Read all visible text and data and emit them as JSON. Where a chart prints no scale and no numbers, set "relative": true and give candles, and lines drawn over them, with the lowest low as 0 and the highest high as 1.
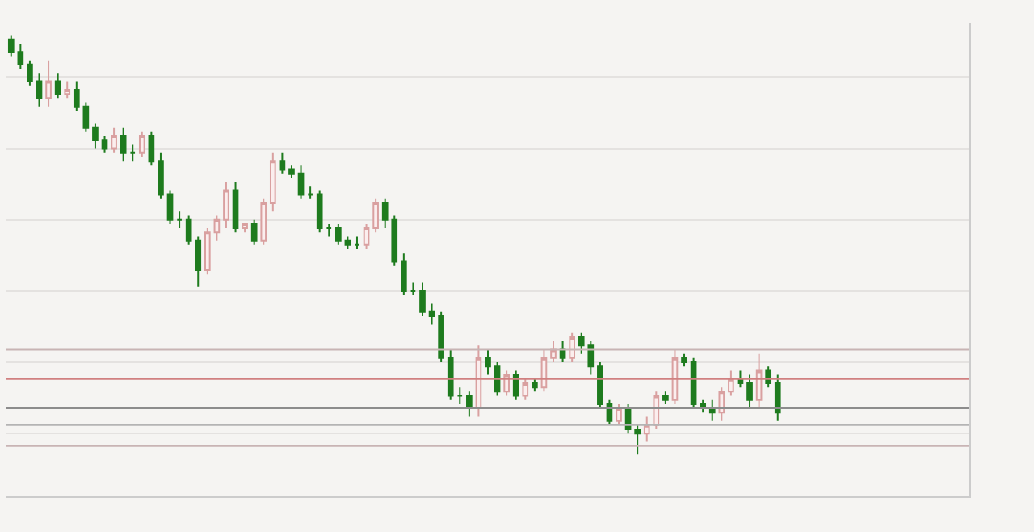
{
  "chart_data": {
    "type": "candlestick",
    "relative": true,
    "grid": true,
    "categories": [
      null,
      null,
      null,
      null,
      null,
      null,
      null,
      null,
      null,
      null,
      null,
      null,
      null,
      null,
      null,
      null,
      null,
      null,
      null,
      null,
      null,
      null,
      null,
      null,
      null,
      null,
      null,
      null,
      null,
      null,
      null,
      null,
      null,
      null,
      null,
      null,
      null,
      null,
      null,
      null,
      null,
      null,
      null,
      null,
      null,
      null,
      null,
      null,
      null,
      null,
      null,
      null,
      null,
      null,
      null,
      null,
      null,
      null,
      null,
      null,
      null,
      null,
      null,
      null,
      null,
      null,
      null,
      null,
      null,
      null,
      null,
      null,
      null,
      null,
      null,
      null,
      null,
      null,
      null,
      null,
      null,
      null,
      null
    ],
    "ohlc": [
      [
        0.99,
        1.0,
        0.95,
        0.96
      ],
      [
        0.96,
        0.98,
        0.92,
        0.93
      ],
      [
        0.93,
        0.94,
        0.88,
        0.89
      ],
      [
        0.89,
        0.91,
        0.83,
        0.85
      ],
      [
        0.85,
        0.94,
        0.83,
        0.89
      ],
      [
        0.89,
        0.91,
        0.85,
        0.86
      ],
      [
        0.86,
        0.89,
        0.85,
        0.87
      ],
      [
        0.87,
        0.89,
        0.82,
        0.83
      ],
      [
        0.83,
        0.84,
        0.77,
        0.78
      ],
      [
        0.78,
        0.79,
        0.73,
        0.75
      ],
      [
        0.75,
        0.76,
        0.72,
        0.73
      ],
      [
        0.73,
        0.78,
        0.72,
        0.76
      ],
      [
        0.76,
        0.78,
        0.7,
        0.72
      ],
      [
        0.72,
        0.74,
        0.7,
        0.72
      ],
      [
        0.72,
        0.77,
        0.71,
        0.76
      ],
      [
        0.76,
        0.77,
        0.69,
        0.7
      ],
      [
        0.7,
        0.72,
        0.61,
        0.62
      ],
      [
        0.62,
        0.63,
        0.55,
        0.56
      ],
      [
        0.56,
        0.58,
        0.54,
        0.56
      ],
      [
        0.56,
        0.57,
        0.5,
        0.51
      ],
      [
        0.51,
        0.52,
        0.4,
        0.44
      ],
      [
        0.44,
        0.54,
        0.43,
        0.53
      ],
      [
        0.53,
        0.57,
        0.51,
        0.56
      ],
      [
        0.56,
        0.65,
        0.54,
        0.63
      ],
      [
        0.63,
        0.65,
        0.53,
        0.54
      ],
      [
        0.54,
        0.55,
        0.53,
        0.55
      ],
      [
        0.55,
        0.56,
        0.5,
        0.51
      ],
      [
        0.51,
        0.61,
        0.5,
        0.6
      ],
      [
        0.6,
        0.72,
        0.58,
        0.7
      ],
      [
        0.7,
        0.72,
        0.67,
        0.68
      ],
      [
        0.68,
        0.69,
        0.66,
        0.67
      ],
      [
        0.67,
        0.69,
        0.61,
        0.62
      ],
      [
        0.62,
        0.64,
        0.61,
        0.62
      ],
      [
        0.62,
        0.63,
        0.53,
        0.54
      ],
      [
        0.54,
        0.55,
        0.52,
        0.54
      ],
      [
        0.54,
        0.55,
        0.5,
        0.51
      ],
      [
        0.51,
        0.52,
        0.49,
        0.5
      ],
      [
        0.5,
        0.52,
        0.49,
        0.5
      ],
      [
        0.5,
        0.55,
        0.49,
        0.54
      ],
      [
        0.54,
        0.61,
        0.53,
        0.6
      ],
      [
        0.6,
        0.61,
        0.54,
        0.56
      ],
      [
        0.56,
        0.57,
        0.45,
        0.46
      ],
      [
        0.46,
        0.48,
        0.38,
        0.39
      ],
      [
        0.39,
        0.41,
        0.38,
        0.39
      ],
      [
        0.39,
        0.41,
        0.33,
        0.34
      ],
      [
        0.34,
        0.36,
        0.31,
        0.33
      ],
      [
        0.33,
        0.34,
        0.22,
        0.23
      ],
      [
        0.23,
        0.25,
        0.13,
        0.14
      ],
      [
        0.14,
        0.16,
        0.12,
        0.14
      ],
      [
        0.14,
        0.15,
        0.09,
        0.11
      ],
      [
        0.11,
        0.26,
        0.09,
        0.23
      ],
      [
        0.23,
        0.25,
        0.19,
        0.21
      ],
      [
        0.21,
        0.22,
        0.14,
        0.15
      ],
      [
        0.15,
        0.2,
        0.14,
        0.19
      ],
      [
        0.19,
        0.2,
        0.13,
        0.14
      ],
      [
        0.14,
        0.18,
        0.13,
        0.17
      ],
      [
        0.17,
        0.18,
        0.15,
        0.16
      ],
      [
        0.16,
        0.25,
        0.15,
        0.23
      ],
      [
        0.23,
        0.27,
        0.22,
        0.25
      ],
      [
        0.25,
        0.27,
        0.22,
        0.23
      ],
      [
        0.23,
        0.29,
        0.22,
        0.28
      ],
      [
        0.28,
        0.29,
        0.24,
        0.26
      ],
      [
        0.26,
        0.27,
        0.19,
        0.21
      ],
      [
        0.21,
        0.22,
        0.11,
        0.12
      ],
      [
        0.12,
        0.13,
        0.07,
        0.08
      ],
      [
        0.08,
        0.12,
        0.07,
        0.11
      ],
      [
        0.11,
        0.12,
        0.05,
        0.06
      ],
      [
        0.06,
        0.07,
        0.0,
        0.05
      ],
      [
        0.05,
        0.09,
        0.03,
        0.07
      ],
      [
        0.07,
        0.15,
        0.06,
        0.14
      ],
      [
        0.14,
        0.15,
        0.12,
        0.13
      ],
      [
        0.13,
        0.25,
        0.12,
        0.23
      ],
      [
        0.23,
        0.24,
        0.21,
        0.22
      ],
      [
        0.22,
        0.23,
        0.11,
        0.12
      ],
      [
        0.12,
        0.13,
        0.1,
        0.11
      ],
      [
        0.11,
        0.13,
        0.08,
        0.1
      ],
      [
        0.1,
        0.16,
        0.08,
        0.15
      ],
      [
        0.15,
        0.2,
        0.14,
        0.18
      ],
      [
        0.18,
        0.2,
        0.16,
        0.17
      ],
      [
        0.17,
        0.19,
        0.11,
        0.13
      ],
      [
        0.13,
        0.24,
        0.11,
        0.2
      ],
      [
        0.2,
        0.21,
        0.16,
        0.17
      ],
      [
        0.17,
        0.19,
        0.08,
        0.1
      ]
    ],
    "ref_lines": [
      {
        "axis": "y",
        "value": 0.25,
        "color": "#c8b4b4"
      },
      {
        "axis": "y",
        "value": 0.18,
        "color": "#d08080"
      },
      {
        "axis": "y",
        "value": 0.11,
        "color": "#8c8c8c"
      },
      {
        "axis": "y",
        "value": 0.07,
        "color": "#b4b4b4"
      },
      {
        "axis": "y",
        "value": 0.02,
        "color": "#c8b4b4"
      }
    ]
  }
}
